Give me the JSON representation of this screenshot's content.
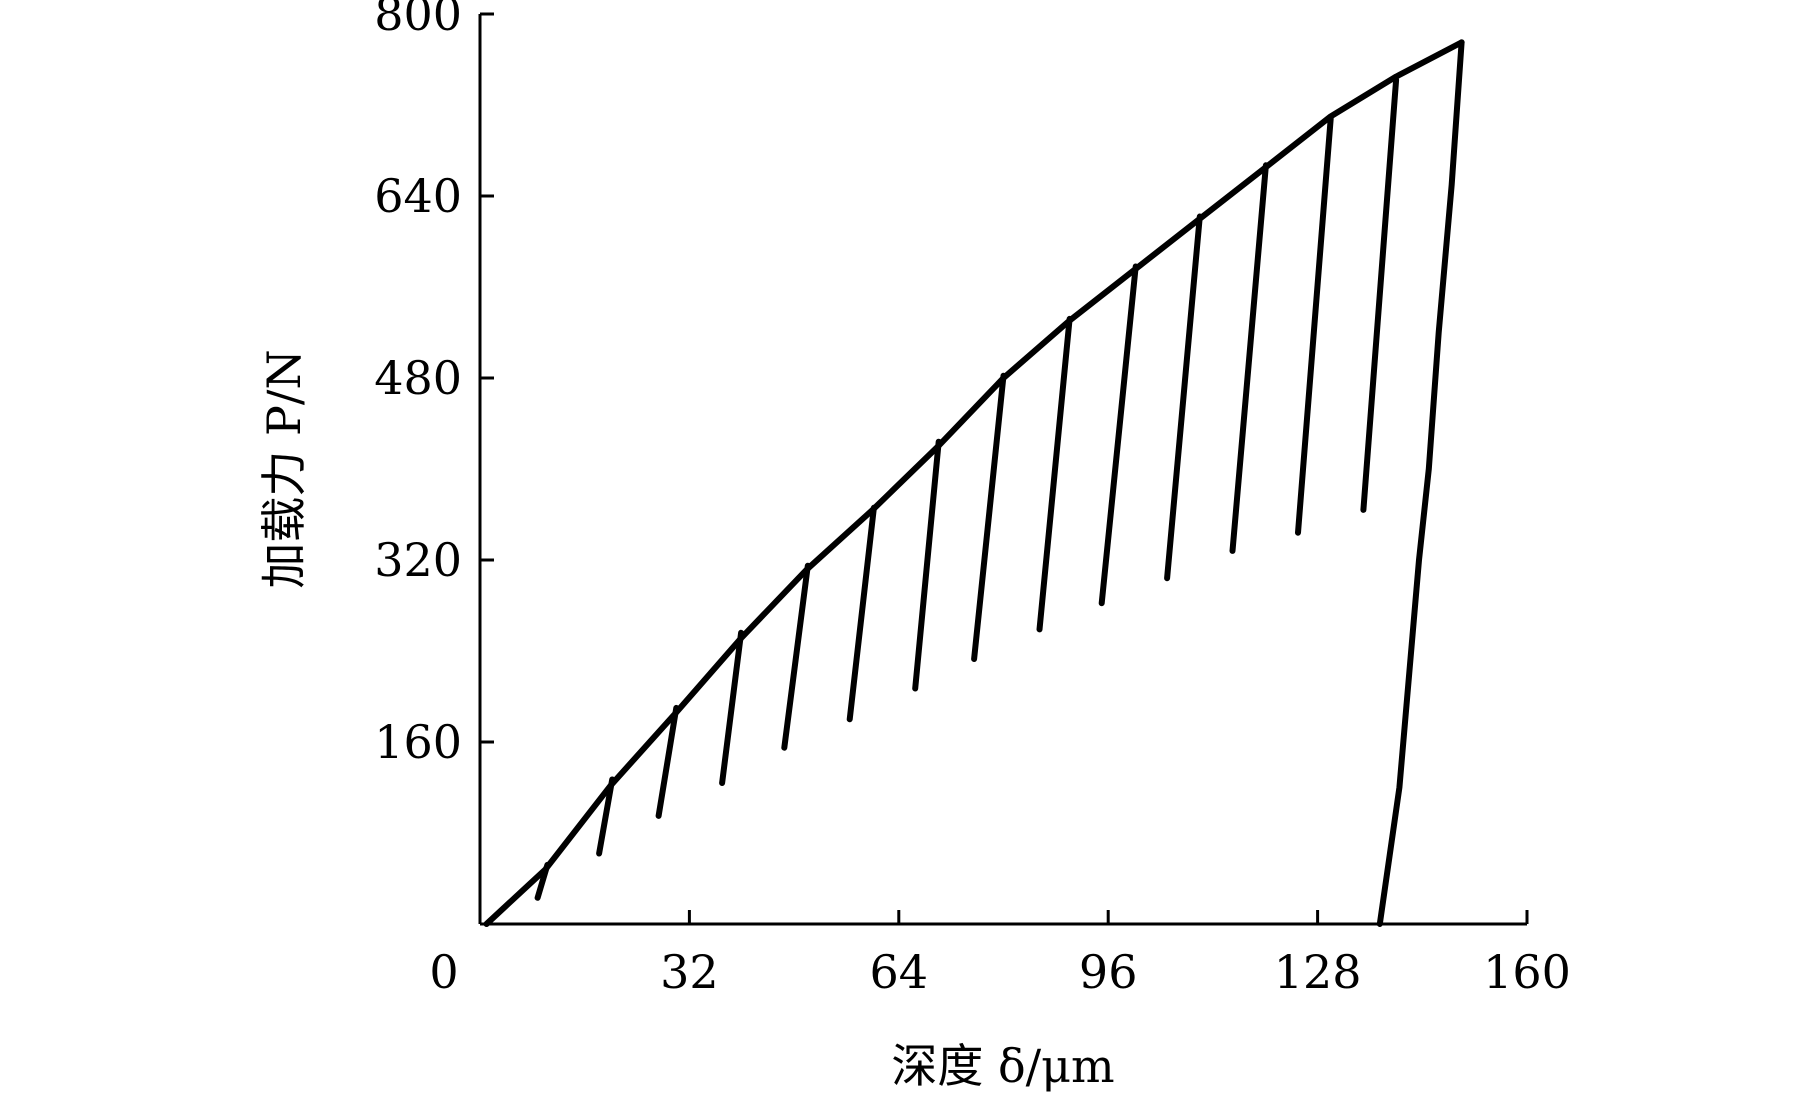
{
  "chart_data": {
    "type": "line",
    "xlabel": "深度 δ/μm",
    "ylabel": "加载力 P/N",
    "xlim": [
      0,
      160
    ],
    "ylim": [
      0,
      800
    ],
    "x_ticks": [
      0,
      32,
      64,
      96,
      128,
      160
    ],
    "y_ticks": [
      160,
      320,
      480,
      640,
      800
    ],
    "x_tick_labels": [
      "0",
      "32",
      "64",
      "96",
      "128",
      "160"
    ],
    "y_tick_labels": [
      "160",
      "320",
      "480",
      "640",
      "800"
    ],
    "grid": false,
    "legend": "none",
    "colors": {
      "line": "#000000",
      "axis": "#000000"
    },
    "series": [
      {
        "role": "loading-envelope",
        "points": [
          [
            1,
            0
          ],
          [
            10,
            48
          ],
          [
            20,
            122
          ],
          [
            30,
            186
          ],
          [
            40,
            252
          ],
          [
            50,
            312
          ],
          [
            60,
            364
          ],
          [
            70,
            420
          ],
          [
            80,
            480
          ],
          [
            90,
            530
          ],
          [
            100,
            575
          ],
          [
            110,
            620
          ],
          [
            120,
            665
          ],
          [
            130,
            710
          ],
          [
            140,
            745
          ],
          [
            150,
            775
          ]
        ]
      },
      {
        "role": "unloading",
        "points": [
          [
            10.3,
            52
          ],
          [
            8.8,
            23
          ]
        ]
      },
      {
        "role": "unloading",
        "points": [
          [
            20.2,
            127
          ],
          [
            18.2,
            62
          ]
        ]
      },
      {
        "role": "unloading",
        "points": [
          [
            30.0,
            190
          ],
          [
            27.3,
            95
          ]
        ]
      },
      {
        "role": "unloading",
        "points": [
          [
            39.9,
            256
          ],
          [
            37.0,
            124
          ]
        ]
      },
      {
        "role": "unloading",
        "points": [
          [
            50.1,
            315
          ],
          [
            46.5,
            155
          ]
        ]
      },
      {
        "role": "unloading",
        "points": [
          [
            60.2,
            366
          ],
          [
            56.5,
            180
          ]
        ]
      },
      {
        "role": "unloading",
        "points": [
          [
            70.1,
            424
          ],
          [
            66.5,
            207
          ]
        ]
      },
      {
        "role": "unloading",
        "points": [
          [
            80.0,
            482
          ],
          [
            75.5,
            233
          ]
        ]
      },
      {
        "role": "unloading",
        "points": [
          [
            90.1,
            532
          ],
          [
            85.5,
            259
          ]
        ]
      },
      {
        "role": "unloading",
        "points": [
          [
            100.2,
            578
          ],
          [
            95.0,
            282
          ]
        ]
      },
      {
        "role": "unloading",
        "points": [
          [
            110.0,
            622
          ],
          [
            105.0,
            304
          ]
        ]
      },
      {
        "role": "unloading",
        "points": [
          [
            120.1,
            667
          ],
          [
            115.0,
            328
          ]
        ]
      },
      {
        "role": "unloading",
        "points": [
          [
            130.0,
            708
          ],
          [
            125.0,
            344
          ]
        ]
      },
      {
        "role": "unloading",
        "points": [
          [
            140.0,
            742
          ],
          [
            135.0,
            364
          ]
        ]
      },
      {
        "role": "final-unloading",
        "points": [
          [
            150,
            775
          ],
          [
            148.5,
            650
          ],
          [
            146.5,
            520
          ],
          [
            145.0,
            400
          ],
          [
            143.5,
            320
          ],
          [
            142.0,
            220
          ],
          [
            140.5,
            120
          ],
          [
            139.0,
            60
          ],
          [
            137.5,
            0
          ]
        ]
      }
    ]
  }
}
